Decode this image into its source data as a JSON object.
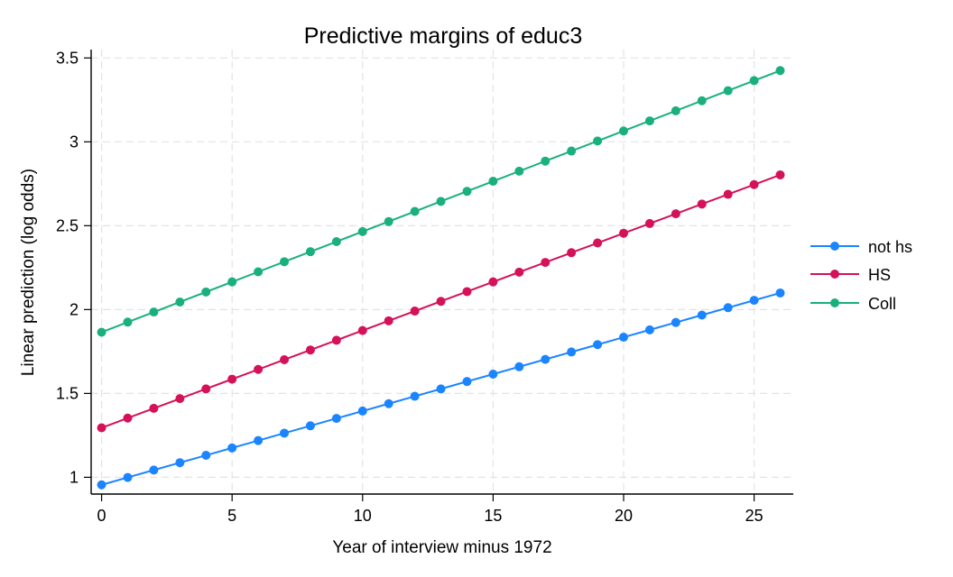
{
  "chart_data": {
    "type": "line",
    "title": "Predictive margins of educ3",
    "xlabel": "Year of interview minus 1972",
    "ylabel": "Linear prediction (log odds)",
    "x": [
      0,
      1,
      2,
      3,
      4,
      5,
      6,
      7,
      8,
      9,
      10,
      11,
      12,
      13,
      14,
      15,
      16,
      17,
      18,
      19,
      20,
      21,
      22,
      23,
      24,
      25,
      26
    ],
    "xlim": [
      -0.4,
      26.5
    ],
    "ylim": [
      0.9,
      3.55
    ],
    "xticks": [
      0,
      5,
      10,
      15,
      20,
      25
    ],
    "xtick_labels": [
      "0",
      "5",
      "10",
      "15",
      "20",
      "25"
    ],
    "yticks": [
      1,
      1.5,
      2,
      2.5,
      3,
      3.5
    ],
    "ytick_labels": [
      "1",
      "1.5",
      "2",
      "2.5",
      "3",
      "3.5"
    ],
    "grid": true,
    "legend_position": "right",
    "series": [
      {
        "name": "not hs",
        "color": "#1a85ff",
        "values": [
          0.955,
          0.999,
          1.043,
          1.087,
          1.131,
          1.175,
          1.219,
          1.263,
          1.307,
          1.351,
          1.395,
          1.439,
          1.483,
          1.527,
          1.571,
          1.615,
          1.659,
          1.703,
          1.747,
          1.791,
          1.835,
          1.879,
          1.923,
          1.967,
          2.011,
          2.055,
          2.099
        ]
      },
      {
        "name": "HS",
        "color": "#d41159",
        "values": [
          1.295,
          1.353,
          1.411,
          1.469,
          1.527,
          1.585,
          1.643,
          1.701,
          1.759,
          1.817,
          1.875,
          1.933,
          1.991,
          2.049,
          2.107,
          2.165,
          2.223,
          2.281,
          2.339,
          2.397,
          2.455,
          2.513,
          2.571,
          2.629,
          2.687,
          2.745,
          2.803
        ]
      },
      {
        "name": "Coll",
        "color": "#1ab07c",
        "values": [
          1.865,
          1.925,
          1.985,
          2.045,
          2.105,
          2.165,
          2.225,
          2.285,
          2.345,
          2.405,
          2.465,
          2.525,
          2.585,
          2.645,
          2.705,
          2.765,
          2.825,
          2.885,
          2.945,
          3.005,
          3.065,
          3.125,
          3.185,
          3.245,
          3.305,
          3.365,
          3.425
        ]
      }
    ]
  }
}
